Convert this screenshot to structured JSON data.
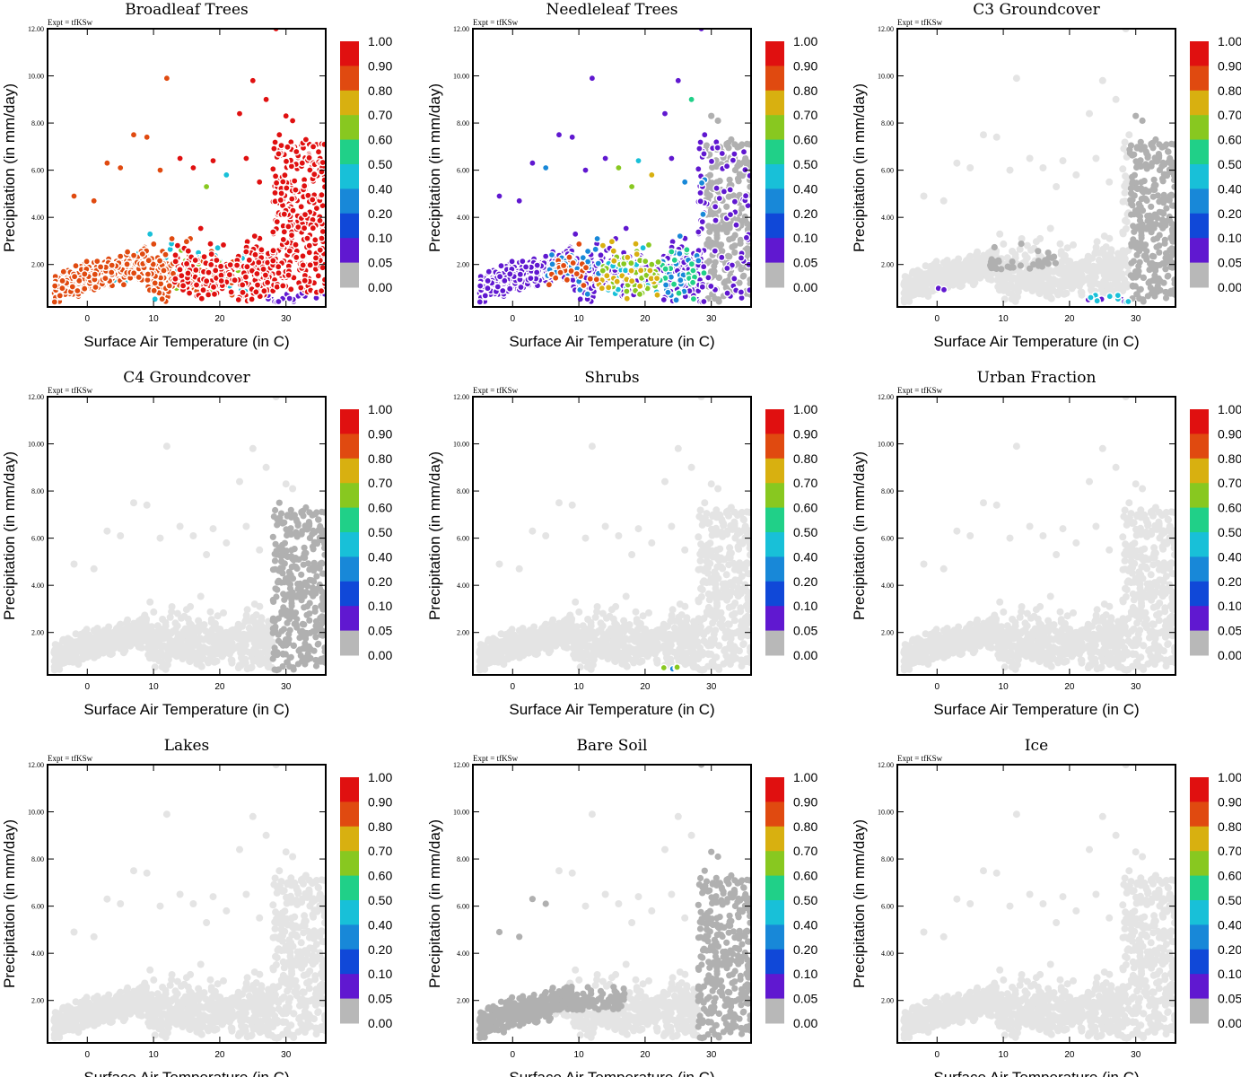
{
  "figure": {
    "colormap": {
      "labels": [
        "1.00",
        "0.90",
        "0.80",
        "0.70",
        "0.60",
        "0.50",
        "0.40",
        "0.20",
        "0.10",
        "0.05",
        "0.00"
      ],
      "colors": [
        "#e01010",
        "#e04a10",
        "#d8b010",
        "#88c820",
        "#20d088",
        "#18c0d8",
        "#1888d8",
        "#1048d8",
        "#6018d0",
        "#b8b8b8"
      ],
      "background_color": "#e4e4e4",
      "present_color": "#b0b0b0"
    },
    "x_ticks": [
      "0",
      "10",
      "20",
      "30"
    ],
    "y_ticks": [
      "2.00",
      "4.00",
      "6.00",
      "8.00",
      "10.00",
      "12.00"
    ]
  },
  "chart_data": [
    {
      "type": "scatter",
      "title": "Broadleaf Trees",
      "annotation": "Expt = tfKSw",
      "xlabel": "Surface Air Temperature (in C)",
      "ylabel": "Precipitation (in mm/day)",
      "xlim": [
        -6,
        36
      ],
      "ylim": [
        0.2,
        12
      ],
      "colorbar_range": [
        0,
        1
      ],
      "pattern": "broadleaf"
    },
    {
      "type": "scatter",
      "title": "Needleleaf Trees",
      "annotation": "Expt = tfKSw",
      "xlabel": "Surface Air Temperature (in C)",
      "ylabel": "Precipitation (in mm/day)",
      "xlim": [
        -6,
        36
      ],
      "ylim": [
        0.2,
        12
      ],
      "colorbar_range": [
        0,
        1
      ],
      "pattern": "needleleaf"
    },
    {
      "type": "scatter",
      "title": "C3 Groundcover",
      "annotation": "Expt = tfKSw",
      "xlabel": "Surface Air Temperature (in C)",
      "ylabel": "Precipitation (in mm/day)",
      "xlim": [
        -6,
        36
      ],
      "ylim": [
        0.2,
        12
      ],
      "colorbar_range": [
        0,
        1
      ],
      "pattern": "c3"
    },
    {
      "type": "scatter",
      "title": "C4 Groundcover",
      "annotation": "Expt = tfKSw",
      "xlabel": "Surface Air Temperature (in C)",
      "ylabel": "Precipitation (in mm/day)",
      "xlim": [
        -6,
        36
      ],
      "ylim": [
        0.2,
        12
      ],
      "colorbar_range": [
        0,
        1
      ],
      "pattern": "c4"
    },
    {
      "type": "scatter",
      "title": "Shrubs",
      "annotation": "Expt = tfKSw",
      "xlabel": "Surface Air Temperature (in C)",
      "ylabel": "Precipitation (in mm/day)",
      "xlim": [
        -6,
        36
      ],
      "ylim": [
        0.2,
        12
      ],
      "colorbar_range": [
        0,
        1
      ],
      "pattern": "shrubs"
    },
    {
      "type": "scatter",
      "title": "Urban Fraction",
      "annotation": "Expt = tfKSw",
      "xlabel": "Surface Air Temperature (in C)",
      "ylabel": "Precipitation (in mm/day)",
      "xlim": [
        -6,
        36
      ],
      "ylim": [
        0.2,
        12
      ],
      "colorbar_range": [
        0,
        1
      ],
      "pattern": "none"
    },
    {
      "type": "scatter",
      "title": "Lakes",
      "annotation": "Expt = tfKSw",
      "xlabel": "Surface Air Temperature (in C)",
      "ylabel": "Precipitation (in mm/day)",
      "xlim": [
        -6,
        36
      ],
      "ylim": [
        0.2,
        12
      ],
      "colorbar_range": [
        0,
        1
      ],
      "pattern": "none"
    },
    {
      "type": "scatter",
      "title": "Bare Soil",
      "annotation": "Expt = tfKSw",
      "xlabel": "Surface Air Temperature (in C)",
      "ylabel": "Precipitation (in mm/day)",
      "xlim": [
        -6,
        36
      ],
      "ylim": [
        0.2,
        12
      ],
      "colorbar_range": [
        0,
        1
      ],
      "pattern": "baresoil"
    },
    {
      "type": "scatter",
      "title": "Ice",
      "annotation": "Expt = tfKSw",
      "xlabel": "Surface Air Temperature (in C)",
      "ylabel": "Precipitation (in mm/day)",
      "xlim": [
        -6,
        36
      ],
      "ylim": [
        0.2,
        12
      ],
      "colorbar_range": [
        0,
        1
      ],
      "pattern": "none"
    }
  ]
}
